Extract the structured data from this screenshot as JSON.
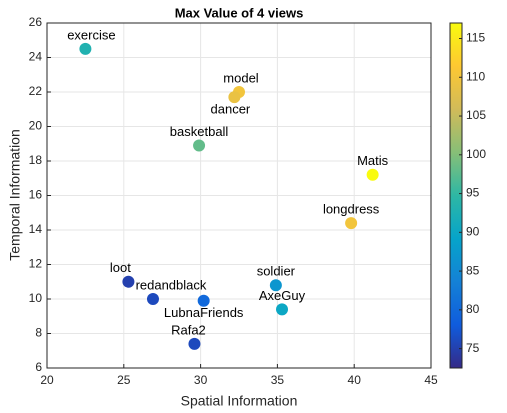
{
  "chart_data": {
    "type": "scatter",
    "title": "Max Value of 4 views",
    "x_label": "Spatial Information",
    "y_label": "Temporal Information",
    "labels": [
      "exercise",
      "model",
      "dancer",
      "basketball",
      "Matis",
      "longdress",
      "soldier",
      "AxeGuy",
      "LubnaFriends",
      "loot",
      "redandblack",
      "Rafa2"
    ],
    "x": [
      22.5,
      32.5,
      32.2,
      29.9,
      41.2,
      39.8,
      34.9,
      35.3,
      30.2,
      25.3,
      26.9,
      29.6
    ],
    "y": [
      24.5,
      22.0,
      21.7,
      18.9,
      17.2,
      14.4,
      10.8,
      9.4,
      9.9,
      11.0,
      10.0,
      7.4
    ],
    "color_values": [
      93,
      110,
      109,
      98,
      117,
      110,
      87,
      90,
      80,
      75,
      76,
      76
    ],
    "colormap": [
      "#352a87",
      "#0f5cdd",
      "#1481d6",
      "#06a4ca",
      "#2eb7a4",
      "#87bf77",
      "#d1bb59",
      "#fec832",
      "#f9fb0e"
    ],
    "xlim": [
      20,
      45
    ],
    "xticks": [
      20,
      25,
      30,
      35,
      40,
      45
    ],
    "ylim": [
      6,
      26
    ],
    "yticks": [
      6,
      8,
      10,
      12,
      14,
      16,
      18,
      20,
      22,
      24,
      26
    ],
    "clim": [
      72.5,
      117
    ],
    "cticks": [
      75,
      80,
      85,
      90,
      95,
      100,
      105,
      110,
      115
    ],
    "grid": true
  }
}
